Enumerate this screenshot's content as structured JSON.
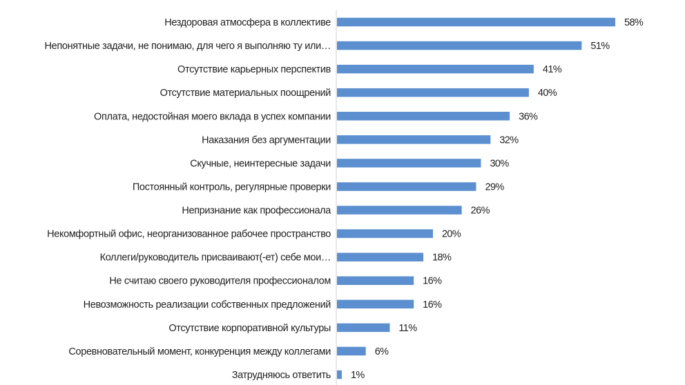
{
  "chart_data": {
    "type": "bar",
    "orientation": "horizontal",
    "title": "",
    "xlabel": "",
    "ylabel": "",
    "xlim": [
      0,
      58
    ],
    "grid": false,
    "legend": "none",
    "bar_color": "#5b8fd0",
    "value_format": "percent",
    "categories": [
      "Нездоровая атмосфера в коллективе",
      "Непонятные задачи, не понимаю, для чего я выполняю ту или…",
      "Отсутствие карьерных перспектив",
      "Отсутствие материальных поощрений",
      "Оплата, недостойная моего вклада в успех компании",
      "Наказания без аргументации",
      "Скучные, неинтересные задачи",
      "Постоянный контроль, регулярные проверки",
      "Непризнание как профессионала",
      "Некомфортный офис, неорганизованное рабочее пространство",
      "Коллеги/руководитель присваивают(-ет) себе мои…",
      "Не считаю своего руководителя профессионалом",
      "Невозможность реализации собственных предложений",
      "Отсутствие корпоративной культуры",
      "Соревновательный момент, конкуренция между коллегами",
      "Затрудняюсь ответить"
    ],
    "values": [
      58,
      51,
      41,
      40,
      36,
      32,
      30,
      29,
      26,
      20,
      18,
      16,
      16,
      11,
      6,
      1
    ],
    "labels": [
      "58%",
      "51%",
      "41%",
      "40%",
      "36%",
      "32%",
      "30%",
      "29%",
      "26%",
      "20%",
      "18%",
      "16%",
      "16%",
      "11%",
      "6%",
      "1%"
    ]
  }
}
